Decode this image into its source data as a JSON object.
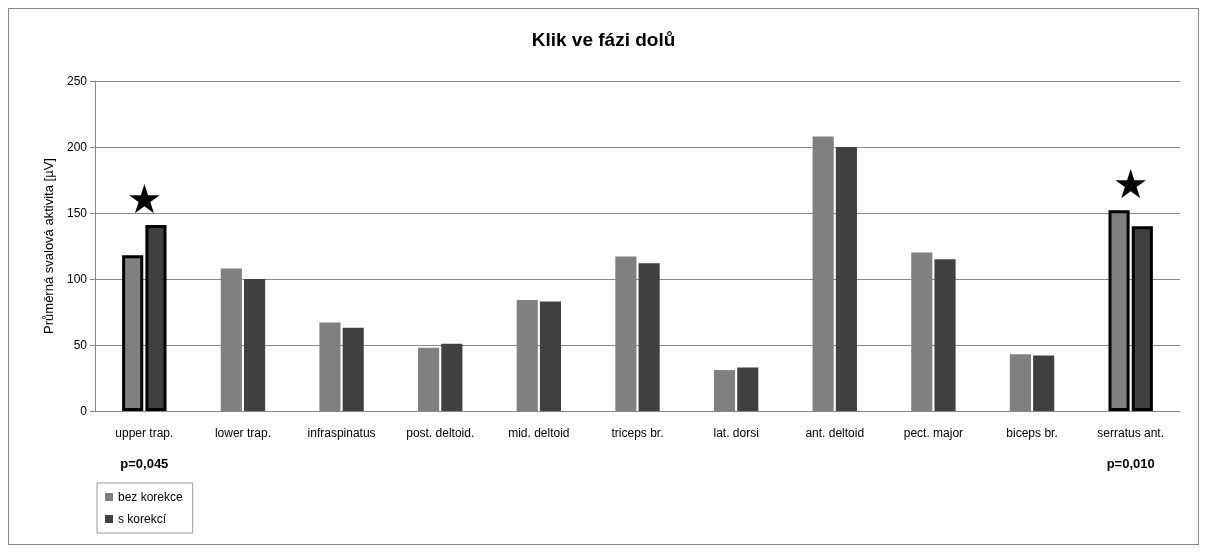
{
  "chart_data": {
    "type": "bar",
    "title": "Klik ve fázi dolů",
    "ylabel": "Průměrná svalová aktivita [µV]",
    "categories": [
      "upper trap.",
      "lower trap.",
      "infraspinatus",
      "post. deltoid.",
      "mid. deltoid",
      "triceps br.",
      "lat. dorsi",
      "ant. deltoid",
      "pect. major",
      "biceps br.",
      "serratus ant."
    ],
    "series": [
      {
        "name": "bez korekce",
        "color": "#808080",
        "values": [
          118,
          108,
          67,
          48,
          84,
          117,
          31,
          208,
          120,
          43,
          152
        ]
      },
      {
        "name": "s korekcí",
        "color": "#404040",
        "values": [
          141,
          100,
          63,
          51,
          83,
          112,
          33,
          200,
          115,
          42,
          140
        ]
      }
    ],
    "ylim": [
      0,
      250
    ],
    "yticks": [
      0,
      50,
      100,
      150,
      200,
      250
    ],
    "grid": "y",
    "legend": "bottom left",
    "annotations": [
      "★",
      "★",
      "p=0,045",
      "p=0,010"
    ]
  }
}
